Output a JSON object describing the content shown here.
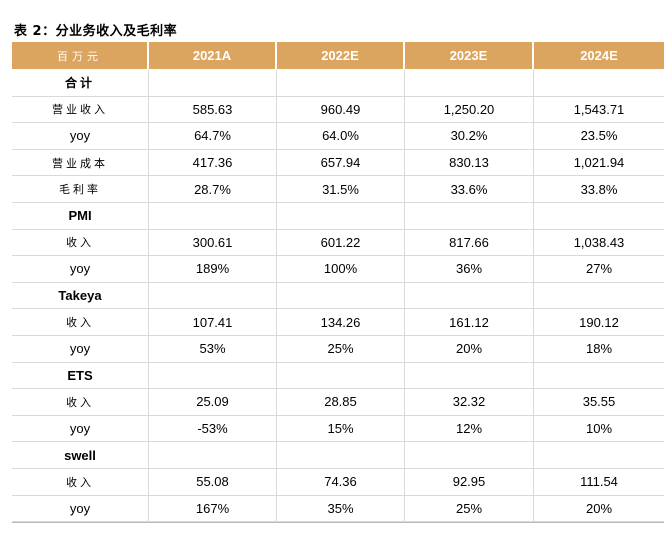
{
  "caption": "表 2：分业务收入及毛利率",
  "header": {
    "unit": "百万元",
    "columns": [
      "2021A",
      "2022E",
      "2023E",
      "2024E"
    ]
  },
  "rows": [
    {
      "label": "合计",
      "type": "section",
      "cn": true,
      "values": [
        "",
        "",
        "",
        ""
      ]
    },
    {
      "label": "营业收入",
      "type": "data",
      "cn": true,
      "values": [
        "585.63",
        "960.49",
        "1,250.20",
        "1,543.71"
      ]
    },
    {
      "label": "yoy",
      "type": "data",
      "cn": false,
      "values": [
        "64.7%",
        "64.0%",
        "30.2%",
        "23.5%"
      ]
    },
    {
      "label": "营业成本",
      "type": "data",
      "cn": true,
      "values": [
        "417.36",
        "657.94",
        "830.13",
        "1,021.94"
      ]
    },
    {
      "label": "毛利率",
      "type": "data",
      "cn": true,
      "values": [
        "28.7%",
        "31.5%",
        "33.6%",
        "33.8%"
      ]
    },
    {
      "label": "PMI",
      "type": "section",
      "cn": false,
      "values": [
        "",
        "",
        "",
        ""
      ]
    },
    {
      "label": "收入",
      "type": "data",
      "cn": true,
      "values": [
        "300.61",
        "601.22",
        "817.66",
        "1,038.43"
      ]
    },
    {
      "label": "yoy",
      "type": "data",
      "cn": false,
      "values": [
        "189%",
        "100%",
        "36%",
        "27%"
      ]
    },
    {
      "label": "Takeya",
      "type": "section",
      "cn": false,
      "values": [
        "",
        "",
        "",
        ""
      ]
    },
    {
      "label": "收入",
      "type": "data",
      "cn": true,
      "values": [
        "107.41",
        "134.26",
        "161.12",
        "190.12"
      ]
    },
    {
      "label": "yoy",
      "type": "data",
      "cn": false,
      "values": [
        "53%",
        "25%",
        "20%",
        "18%"
      ]
    },
    {
      "label": "ETS",
      "type": "section",
      "cn": false,
      "values": [
        "",
        "",
        "",
        ""
      ]
    },
    {
      "label": "收入",
      "type": "data",
      "cn": true,
      "values": [
        "25.09",
        "28.85",
        "32.32",
        "35.55"
      ]
    },
    {
      "label": "yoy",
      "type": "data",
      "cn": false,
      "values": [
        "-53%",
        "15%",
        "12%",
        "10%"
      ]
    },
    {
      "label": "swell",
      "type": "section",
      "cn": false,
      "values": [
        "",
        "",
        "",
        ""
      ]
    },
    {
      "label": "收入",
      "type": "data",
      "cn": true,
      "values": [
        "55.08",
        "74.36",
        "92.95",
        "111.54"
      ]
    },
    {
      "label": "yoy",
      "type": "data",
      "cn": false,
      "values": [
        "167%",
        "35%",
        "25%",
        "20%"
      ]
    }
  ]
}
